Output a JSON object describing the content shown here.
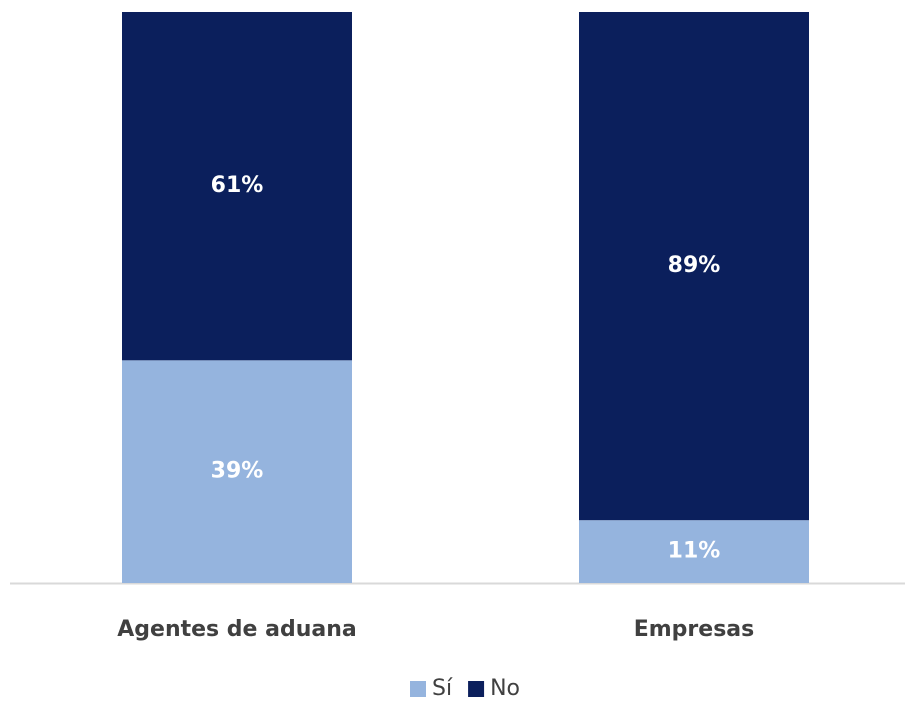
{
  "chart_data": {
    "type": "stacked_bar",
    "categories": [
      "Agentes de aduana",
      "Empresas"
    ],
    "series": [
      {
        "name": "Sí",
        "color": "#95b4de",
        "values": [
          39,
          11
        ],
        "value_labels": [
          "39%",
          "11%"
        ]
      },
      {
        "name": "No",
        "color": "#0b1f5c",
        "values": [
          61,
          89
        ],
        "value_labels": [
          "61%",
          "89%"
        ]
      }
    ],
    "ylim": [
      0,
      100
    ],
    "legend": "bottom"
  }
}
